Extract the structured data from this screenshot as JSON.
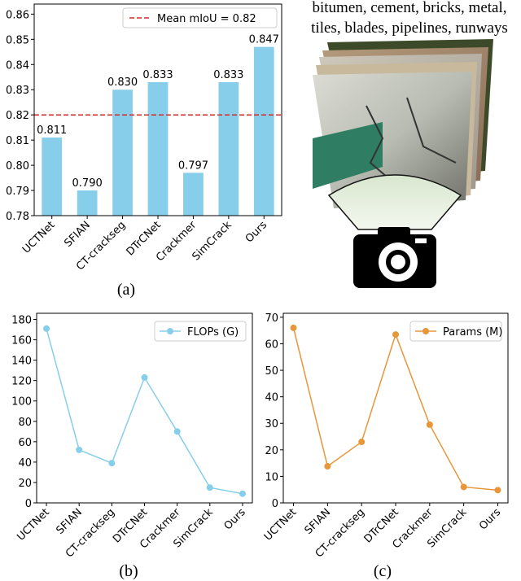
{
  "chart_data": [
    {
      "type": "bar",
      "caption": "(a)",
      "categories": [
        "UCTNet",
        "SFIAN",
        "CT-crackseg",
        "DTrCNet",
        "Crackmer",
        "SimCrack",
        "Ours"
      ],
      "values": [
        0.811,
        0.79,
        0.83,
        0.833,
        0.797,
        0.833,
        0.847
      ],
      "value_labels": [
        "0.811",
        "0.790",
        "0.830",
        "0.833",
        "0.797",
        "0.833",
        "0.847"
      ],
      "color": "#87ceeb",
      "ylim": [
        0.78,
        0.864
      ],
      "yticks": [
        0.78,
        0.79,
        0.8,
        0.81,
        0.82,
        0.83,
        0.84,
        0.85,
        0.86
      ],
      "yticks_labels": [
        "0.78",
        "0.79",
        "0.80",
        "0.81",
        "0.82",
        "0.83",
        "0.84",
        "0.85",
        "0.86"
      ],
      "hline": {
        "value": 0.82,
        "name": "Mean mIoU = 0.82",
        "color": "#d62728"
      },
      "legend": "upper right"
    },
    {
      "type": "line",
      "caption": "(b)",
      "categories": [
        "UCTNet",
        "SFIAN",
        "CT-crackseg",
        "DTrCNet",
        "Crackmer",
        "SimCrack",
        "Ours"
      ],
      "series": [
        {
          "name": "FLOPs (G)",
          "color": "#87ceeb",
          "values": [
            171,
            52,
            39,
            123,
            70,
            15,
            9
          ]
        }
      ],
      "ylim": [
        0,
        186
      ],
      "yticks": [
        0,
        20,
        40,
        60,
        80,
        100,
        120,
        140,
        160,
        180
      ],
      "legend": "upper right"
    },
    {
      "type": "line",
      "caption": "(c)",
      "categories": [
        "UCTNet",
        "SFIAN",
        "CT-crackseg",
        "DTrCNet",
        "Crackmer",
        "SimCrack",
        "Ours"
      ],
      "series": [
        {
          "name": "Params (M)",
          "color": "#e8963a",
          "values": [
            66,
            13.8,
            23,
            63.5,
            29.5,
            6,
            4.8
          ]
        }
      ],
      "ylim": [
        0,
        71.5
      ],
      "yticks": [
        0,
        10,
        20,
        30,
        40,
        50,
        60,
        70
      ],
      "legend": "upper right"
    }
  ],
  "illustration": {
    "lines": [
      "bitumen, cement, bricks, metal,",
      "tiles, blades, pipelines, runways"
    ]
  }
}
